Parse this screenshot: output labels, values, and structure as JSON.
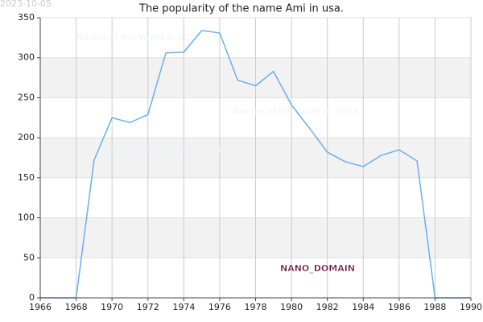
{
  "chart_data": {
    "type": "line",
    "title": "The popularity of the name Ami in usa.",
    "x": [
      1966,
      1967,
      1968,
      1969,
      1970,
      1971,
      1972,
      1973,
      1974,
      1975,
      1976,
      1977,
      1978,
      1979,
      1980,
      1981,
      1982,
      1983,
      1984,
      1985,
      1986,
      1987,
      1988,
      1989,
      1990
    ],
    "series": [
      {
        "name": "Ami",
        "color": "#6aaef0",
        "values": [
          0,
          0,
          0,
          172,
          225,
          219,
          229,
          306,
          307,
          334,
          331,
          272,
          265,
          283,
          241,
          212,
          182,
          170,
          164,
          178,
          185,
          171,
          0,
          0,
          0
        ]
      }
    ],
    "xlim": [
      1966,
      1990
    ],
    "xticks": [
      1966,
      1968,
      1970,
      1972,
      1974,
      1976,
      1978,
      1980,
      1982,
      1984,
      1986,
      1988,
      1990
    ],
    "ylim": [
      0,
      350
    ],
    "yticks": [
      0,
      50,
      100,
      150,
      200,
      250,
      300,
      350
    ],
    "grid": true,
    "annotations": {
      "date": "2023-10-05",
      "domain": "NANO_DOMAIN",
      "watermarks": [
        "Names of the World © 2023",
        "Names of the World © 2023",
        "Names of the World © 2023"
      ]
    }
  }
}
